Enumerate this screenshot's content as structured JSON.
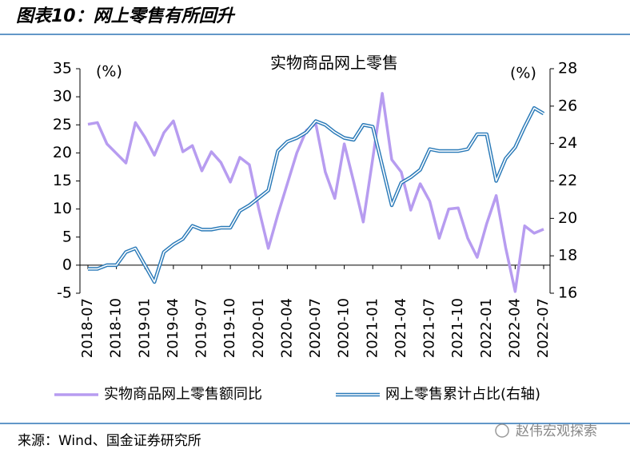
{
  "header": {
    "title": "图表10：网上零售有所回升"
  },
  "chart_data": {
    "type": "line",
    "title": "实物商品网上零售",
    "ylabel": "(%)",
    "y2label": "(%)",
    "x": [
      "2018-07",
      "2018-08",
      "2018-09",
      "2018-10",
      "2018-11",
      "2018-12",
      "2019-01",
      "2019-02",
      "2019-03",
      "2019-04",
      "2019-05",
      "2019-06",
      "2019-07",
      "2019-08",
      "2019-09",
      "2019-10",
      "2019-11",
      "2019-12",
      "2020-01",
      "2020-02",
      "2020-03",
      "2020-04",
      "2020-05",
      "2020-06",
      "2020-07",
      "2020-08",
      "2020-09",
      "2020-10",
      "2020-11",
      "2020-12",
      "2021-01",
      "2021-02",
      "2021-03",
      "2021-04",
      "2021-05",
      "2021-06",
      "2021-07",
      "2021-08",
      "2021-09",
      "2021-10",
      "2021-11",
      "2021-12",
      "2022-01",
      "2022-02",
      "2022-03",
      "2022-04",
      "2022-05",
      "2022-06",
      "2022-07"
    ],
    "xticks": [
      "2018-07",
      "2018-10",
      "2019-01",
      "2019-04",
      "2019-07",
      "2019-10",
      "2020-01",
      "2020-04",
      "2020-07",
      "2020-10",
      "2021-01",
      "2021-04",
      "2021-07",
      "2021-10",
      "2022-01",
      "2022-04",
      "2022-07"
    ],
    "series": [
      {
        "name": "实物商品网上零售额同比",
        "color": "#b79cf0",
        "values": [
          25.1,
          25.4,
          21.6,
          19.9,
          18.2,
          25.4,
          22.8,
          19.6,
          23.6,
          25.7,
          20.2,
          21.3,
          16.8,
          20.2,
          18.3,
          14.8,
          19.2,
          17.9,
          10.0,
          3.0,
          9.0,
          14.5,
          20.0,
          24.0,
          25.2,
          16.6,
          11.9,
          21.6,
          14.8,
          7.7,
          19.0,
          30.6,
          18.8,
          16.6,
          9.8,
          14.5,
          11.4,
          4.8,
          10.0,
          10.2,
          4.8,
          1.4,
          7.4,
          12.4,
          3.1,
          -4.7,
          7.0,
          5.7,
          6.4
        ]
      },
      {
        "name": "网上零售累计占比(右轴)",
        "color": "#2a7ab8",
        "axis": "y2",
        "values": [
          17.3,
          17.3,
          17.5,
          17.5,
          18.2,
          18.4,
          17.5,
          16.6,
          18.2,
          18.6,
          18.9,
          19.6,
          19.4,
          19.4,
          19.5,
          19.5,
          20.4,
          20.7,
          21.1,
          21.5,
          23.6,
          24.1,
          24.3,
          24.6,
          25.2,
          25.0,
          24.6,
          24.3,
          24.2,
          25.0,
          24.9,
          22.8,
          20.7,
          21.9,
          22.2,
          22.6,
          23.7,
          23.6,
          23.6,
          23.6,
          23.7,
          24.5,
          24.5,
          22.0,
          23.2,
          23.8,
          24.9,
          25.9,
          25.6
        ]
      }
    ],
    "ylim": [
      -5,
      35
    ],
    "yticks": [
      -5,
      0,
      5,
      10,
      15,
      20,
      25,
      30,
      35
    ],
    "y2lim": [
      16,
      28
    ],
    "y2ticks": [
      16,
      18,
      20,
      22,
      24,
      26,
      28
    ]
  },
  "footer": {
    "source": "来源：Wind、国金证券研究所",
    "watermark": "赵伟宏观探索"
  }
}
